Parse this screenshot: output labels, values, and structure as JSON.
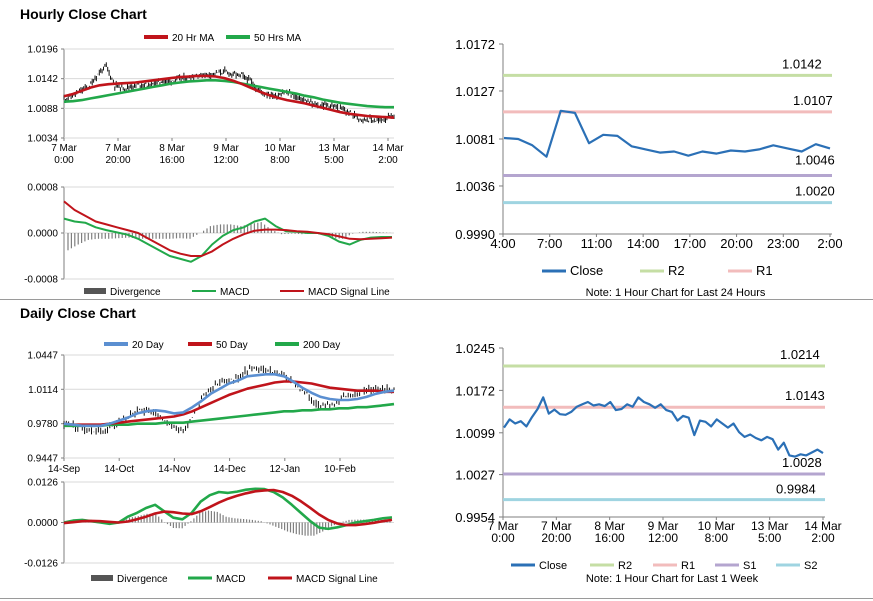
{
  "sections": {
    "hourly_title": "Hourly Close Chart",
    "daily_title": "Daily Close Chart"
  },
  "colors": {
    "ma_red": "#c0141b",
    "ma_green": "#22a84a",
    "ma_blue": "#5b8fd1",
    "close_blue": "#2b70b6",
    "r2": "#c5dea4",
    "r1": "#f2bcbc",
    "s1": "#b4a5cf",
    "s2": "#9fd4e1",
    "candle": "#111111",
    "hist": "#7f7f7f",
    "axis": "#7f7f7f"
  },
  "chart_data": [
    {
      "id": "hourly_price",
      "type": "line",
      "legend": [
        "20 Hr MA",
        "50 Hrs MA"
      ],
      "ylim": [
        1.0034,
        1.0196
      ],
      "yticks": [
        "1.0196",
        "1.0142",
        "1.0088",
        "1.0034"
      ],
      "xticks": [
        [
          "7 Mar",
          "0:00"
        ],
        [
          "7 Mar",
          "20:00"
        ],
        [
          "8 Mar",
          "16:00"
        ],
        [
          "9 Mar",
          "12:00"
        ],
        [
          "10 Mar",
          "8:00"
        ],
        [
          "13 Mar",
          "5:00"
        ],
        [
          "14 Mar",
          "2:00"
        ]
      ],
      "price_path": [
        1.0105,
        1.011,
        1.012,
        1.0128,
        1.015,
        1.0165,
        1.013,
        1.0125,
        1.0128,
        1.0132,
        1.013,
        1.0135,
        1.0138,
        1.014,
        1.0142,
        1.0145,
        1.0148,
        1.015,
        1.0152,
        1.0155,
        1.015,
        1.0148,
        1.0138,
        1.012,
        1.0115,
        1.011,
        1.0118,
        1.0112,
        1.0105,
        1.0098,
        1.0092,
        1.0095,
        1.009,
        1.0085,
        1.0078,
        1.007,
        1.0068,
        1.0065,
        1.007,
        1.0072
      ],
      "series": [
        {
          "name": "20 Hr MA",
          "values": [
            1.011,
            1.0114,
            1.012,
            1.0126,
            1.013,
            1.0132,
            1.0133,
            1.0134,
            1.0135,
            1.0137,
            1.0139,
            1.0141,
            1.0143,
            1.0145,
            1.0146,
            1.0147,
            1.0147,
            1.0146,
            1.0143,
            1.0138,
            1.0132,
            1.0125,
            1.0118,
            1.0112,
            1.0107,
            1.0103,
            1.01,
            1.0097,
            1.0093,
            1.0089,
            1.0085,
            1.0081,
            1.0078,
            1.0076,
            1.0074,
            1.0073,
            1.0072,
            1.0071
          ]
        },
        {
          "name": "50 Hrs MA",
          "values": [
            1.01,
            1.0101,
            1.0103,
            1.0106,
            1.0109,
            1.0112,
            1.0115,
            1.0118,
            1.0121,
            1.0124,
            1.0127,
            1.013,
            1.0133,
            1.0135,
            1.0137,
            1.0138,
            1.0139,
            1.0139,
            1.0138,
            1.0136,
            1.0133,
            1.013,
            1.0127,
            1.0124,
            1.0121,
            1.0118,
            1.0115,
            1.0111,
            1.0108,
            1.0104,
            1.0101,
            1.0098,
            1.0096,
            1.0094,
            1.0092,
            1.0091,
            1.009,
            1.009
          ]
        }
      ]
    },
    {
      "id": "hourly_macd",
      "type": "line",
      "legend": [
        "Divergence",
        "MACD",
        "MACD Signal Line"
      ],
      "ylim": [
        -0.0008,
        0.0008
      ],
      "yticks": [
        "0.0008",
        "0.0000",
        "-0.0008"
      ],
      "series": [
        {
          "name": "MACD",
          "values": [
            0.00025,
            0.0002,
            0.00018,
            0.0001,
            5e-05,
            1e-05,
            -3e-05,
            -0.0001,
            -0.0002,
            -0.0003,
            -0.0004,
            -0.00045,
            -0.0005,
            -0.0004,
            -0.0002,
            -5e-05,
            5e-05,
            0.0001,
            0.0002,
            0.00025,
            0.00012,
            3e-05,
            2e-05,
            0.0,
            0.0,
            -5e-05,
            -0.00015,
            -0.0002,
            -0.00012,
            -8e-05,
            -7e-05,
            -7e-05
          ]
        },
        {
          "name": "MACD Signal Line",
          "values": [
            0.00055,
            0.0004,
            0.0003,
            0.0002,
            0.00015,
            0.0001,
            5e-05,
            0.0,
            -0.0001,
            -0.0002,
            -0.0003,
            -0.00036,
            -0.0004,
            -0.0004,
            -0.00032,
            -0.0002,
            -0.0001,
            -2e-05,
            4e-05,
            6e-05,
            6e-05,
            5e-05,
            3e-05,
            2e-05,
            0.0,
            -2e-05,
            -6e-05,
            -0.0001,
            -0.00011,
            -0.0001,
            -9e-05,
            -8e-05
          ]
        },
        {
          "name": "Divergence",
          "values": [
            -0.0003,
            -0.0002,
            -0.00012,
            -0.0001,
            -0.0001,
            -9e-05,
            -8e-05,
            -0.0001,
            -0.0001,
            -0.0001,
            -0.0001,
            -9e-05,
            -0.0001,
            0.0,
            0.00012,
            0.00015,
            0.00015,
            0.00012,
            0.00016,
            0.00019,
            6e-05,
            -2e-05,
            -1e-05,
            -2e-05,
            0.0,
            -3e-05,
            -9e-05,
            -0.0001,
            -1e-05,
            2e-05,
            2e-05,
            1e-05
          ]
        }
      ]
    },
    {
      "id": "hourly_24h",
      "type": "line",
      "ylim": [
        0.999,
        1.0172
      ],
      "yticks": [
        "1.0172",
        "1.0127",
        "1.0081",
        "1.0036",
        "0.9990"
      ],
      "xticks": [
        "4:00",
        "7:00",
        "11:00",
        "14:00",
        "17:00",
        "20:00",
        "23:00",
        "2:00"
      ],
      "legend": [
        "Close",
        "R2",
        "R1"
      ],
      "note": "Note: 1 Hour Chart for Last 24 Hours",
      "levels": [
        {
          "name": "R2",
          "value": 1.0142,
          "label": "1.0142"
        },
        {
          "name": "R1",
          "value": 1.0107,
          "label": "1.0107"
        },
        {
          "name": "S1",
          "value": 1.0046,
          "label": "1.0046"
        },
        {
          "name": "S2",
          "value": 1.002,
          "label": "1.0020"
        }
      ],
      "series": [
        {
          "name": "Close",
          "values": [
            1.0082,
            1.0081,
            1.0075,
            1.0064,
            1.0108,
            1.0106,
            1.0077,
            1.0085,
            1.0084,
            1.0074,
            1.0071,
            1.0068,
            1.0069,
            1.0065,
            1.0069,
            1.0067,
            1.007,
            1.0069,
            1.0071,
            1.0075,
            1.0072,
            1.0069,
            1.0076,
            1.0072
          ]
        }
      ]
    },
    {
      "id": "daily_price",
      "type": "line",
      "legend": [
        "20 Day",
        "50 Day",
        "200 Day"
      ],
      "ylim": [
        0.9447,
        1.0447
      ],
      "yticks": [
        "1.0447",
        "1.0114",
        "0.9780",
        "0.9447"
      ],
      "xticks": [
        "14-Sep",
        "14-Oct",
        "14-Nov",
        "14-Dec",
        "12-Jan",
        "10-Feb"
      ],
      "price_path": [
        0.978,
        0.976,
        0.974,
        0.972,
        0.97,
        0.974,
        0.98,
        0.985,
        0.99,
        0.992,
        0.988,
        0.98,
        0.975,
        0.972,
        0.985,
        1.002,
        1.012,
        1.018,
        1.02,
        1.022,
        1.03,
        1.032,
        1.03,
        1.028,
        1.025,
        1.018,
        1.01,
        1.002,
        0.996,
        0.995,
        1.0,
        1.005,
        1.008,
        1.01,
        1.012,
        1.013,
        1.012
      ],
      "series": [
        {
          "name": "20 Day",
          "values": [
            0.978,
            0.977,
            0.976,
            0.976,
            0.976,
            0.978,
            0.981,
            0.984,
            0.988,
            0.99,
            0.991,
            0.99,
            0.988,
            0.989,
            0.994,
            1.0,
            1.007,
            1.012,
            1.017,
            1.02,
            1.024,
            1.025,
            1.026,
            1.026,
            1.024,
            1.019,
            1.013,
            1.008,
            1.004,
            1.002,
            1.001,
            1.001,
            1.002,
            1.004,
            1.007,
            1.009,
            1.01
          ]
        },
        {
          "name": "50 Day",
          "values": [
            0.978,
            0.977,
            0.977,
            0.977,
            0.977,
            0.978,
            0.979,
            0.98,
            0.981,
            0.982,
            0.983,
            0.984,
            0.985,
            0.987,
            0.99,
            0.994,
            0.998,
            1.002,
            1.006,
            1.009,
            1.012,
            1.014,
            1.016,
            1.018,
            1.019,
            1.019,
            1.018,
            1.017,
            1.015,
            1.013,
            1.012,
            1.011,
            1.01,
            1.01,
            1.01,
            1.009,
            1.009
          ]
        },
        {
          "name": "200 Day",
          "values": [
            0.976,
            0.976,
            0.976,
            0.976,
            0.976,
            0.977,
            0.977,
            0.977,
            0.978,
            0.978,
            0.978,
            0.979,
            0.979,
            0.979,
            0.98,
            0.981,
            0.982,
            0.983,
            0.984,
            0.985,
            0.986,
            0.987,
            0.988,
            0.989,
            0.99,
            0.99,
            0.991,
            0.991,
            0.992,
            0.992,
            0.993,
            0.993,
            0.994,
            0.994,
            0.995,
            0.996,
            0.997
          ]
        }
      ]
    },
    {
      "id": "daily_macd",
      "type": "line",
      "legend": [
        "Divergence",
        "MACD",
        "MACD Signal Line"
      ],
      "ylim": [
        -0.0126,
        0.0126
      ],
      "yticks": [
        "0.0126",
        "0.0000",
        "-0.0126"
      ],
      "series": [
        {
          "name": "MACD",
          "values": [
            0.0,
            0.0006,
            0.0008,
            0.0004,
            0.0,
            -0.0004,
            0.0,
            0.0018,
            0.003,
            0.0045,
            0.0055,
            0.0035,
            0.0015,
            0.001,
            0.003,
            0.0065,
            0.0085,
            0.0095,
            0.0092,
            0.0096,
            0.0102,
            0.0105,
            0.0104,
            0.0095,
            0.0078,
            0.0055,
            0.003,
            0.0005,
            -0.0016,
            -0.002,
            -0.0015,
            -0.0008,
            0.0,
            0.0004,
            0.0008,
            0.0013,
            0.0016
          ]
        },
        {
          "name": "MACD Signal Line",
          "values": [
            -0.0002,
            0.0001,
            0.0004,
            0.0005,
            0.0004,
            0.0002,
            0.0,
            0.0003,
            0.001,
            0.0018,
            0.0028,
            0.0034,
            0.0032,
            0.0028,
            0.0026,
            0.0035,
            0.0048,
            0.0062,
            0.0074,
            0.0083,
            0.0091,
            0.0097,
            0.01,
            0.0101,
            0.0095,
            0.0083,
            0.0066,
            0.0046,
            0.0025,
            0.0008,
            -0.0003,
            -0.0008,
            -0.0008,
            -0.0005,
            -0.0001,
            0.0004,
            0.0008
          ]
        },
        {
          "name": "Divergence",
          "values": [
            0.0002,
            0.0005,
            0.0004,
            -0.0001,
            -0.0004,
            -0.0006,
            0.0,
            0.0015,
            0.002,
            0.0027,
            0.0027,
            0.0001,
            -0.0017,
            -0.0018,
            0.0004,
            0.003,
            0.0037,
            0.0033,
            0.0018,
            0.0013,
            0.0011,
            0.0008,
            0.0004,
            -0.0006,
            -0.0017,
            -0.0028,
            -0.0036,
            -0.0041,
            -0.0041,
            -0.0028,
            -0.0012,
            0.0,
            0.0008,
            0.0009,
            0.0009,
            0.0009,
            0.0008
          ]
        }
      ]
    },
    {
      "id": "daily_week",
      "type": "line",
      "ylim": [
        0.9954,
        1.0245
      ],
      "yticks": [
        "1.0245",
        "1.0172",
        "1.0099",
        "1.0027",
        "0.9954"
      ],
      "xticks": [
        [
          "7 Mar",
          "0:00"
        ],
        [
          "7 Mar",
          "20:00"
        ],
        [
          "8 Mar",
          "16:00"
        ],
        [
          "9 Mar",
          "12:00"
        ],
        [
          "10 Mar",
          "8:00"
        ],
        [
          "13 Mar",
          "5:00"
        ],
        [
          "14 Mar",
          "2:00"
        ]
      ],
      "legend": [
        "Close",
        "R2",
        "R1",
        "S1",
        "S2"
      ],
      "note": "Note: 1 Hour Chart for Last 1 Week",
      "levels": [
        {
          "name": "R2",
          "value": 1.0214,
          "label": "1.0214"
        },
        {
          "name": "R1",
          "value": 1.0143,
          "label": "1.0143"
        },
        {
          "name": "S1",
          "value": 1.0028,
          "label": "1.0028"
        },
        {
          "name": "S2",
          "value": 0.9984,
          "label": "0.9984"
        }
      ],
      "series": [
        {
          "name": "Close",
          "values": [
            1.0108,
            1.0122,
            1.0115,
            1.0119,
            1.011,
            1.0126,
            1.014,
            1.016,
            1.0132,
            1.0139,
            1.0131,
            1.013,
            1.0135,
            1.0144,
            1.0148,
            1.0152,
            1.0146,
            1.0148,
            1.0145,
            1.0152,
            1.0138,
            1.014,
            1.0148,
            1.0144,
            1.016,
            1.0152,
            1.0148,
            1.0142,
            1.0148,
            1.0138,
            1.0135,
            1.012,
            1.0128,
            1.0125,
            1.0095,
            1.012,
            1.0118,
            1.011,
            1.0122,
            1.0115,
            1.0108,
            1.0115,
            1.01,
            1.0092,
            1.0096,
            1.009,
            1.0086,
            1.0092,
            1.0088,
            1.007,
            1.0082,
            1.006,
            1.0058,
            1.0062,
            1.006,
            1.0065,
            1.007,
            1.0064
          ]
        }
      ]
    }
  ]
}
